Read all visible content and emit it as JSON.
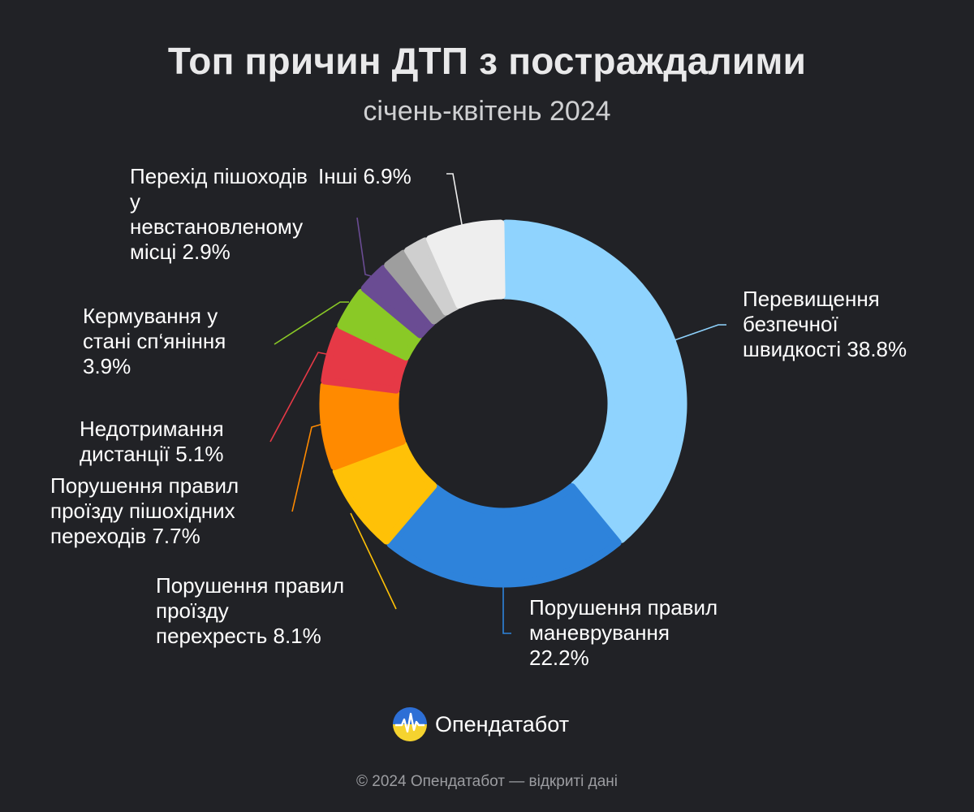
{
  "title": "Топ причин ДТП з постраждалими",
  "subtitle": "січень-квітень 2024",
  "brand": {
    "name": "Опендатабот",
    "logo_icon": "heartbeat-logo-icon"
  },
  "footer": "© 2024 Опендатабот — відкриті дані",
  "chart_data": {
    "type": "donut",
    "title": "Топ причин ДТП з постраждалими",
    "subtitle": "січень-квітень 2024",
    "unit": "%",
    "slices": [
      {
        "label": "Перевищення безпечної швидкості",
        "value": 38.8,
        "color": "#8fd3fe",
        "label_lines": [
          "Перевищення",
          "безпечної",
          "швидкості 38.8%"
        ]
      },
      {
        "label": "Порушення правил маневрування",
        "value": 22.2,
        "color": "#2e83db",
        "label_lines": [
          "Порушення правил",
          "маневрування",
          "22.2%"
        ]
      },
      {
        "label": "Порушення правил проїзду перехресть",
        "value": 8.1,
        "color": "#ffc107",
        "label_lines": [
          "Порушення правил",
          "проїзду",
          "перехресть 8.1%"
        ]
      },
      {
        "label": "Порушення правил проїзду пішохідних переходів",
        "value": 7.7,
        "color": "#ff8a00",
        "label_lines": [
          "Порушення правил",
          "проїзду пішохідних",
          "переходів 7.7%"
        ]
      },
      {
        "label": "Недотримання дистанції",
        "value": 5.1,
        "color": "#e63946",
        "label_lines": [
          "Недотримання",
          "дистанції 5.1%"
        ]
      },
      {
        "label": "Кермування у стані сп‘яніння",
        "value": 3.9,
        "color": "#8ac926",
        "label_lines": [
          "Кермування у",
          "стані сп‘яніння",
          "3.9%"
        ]
      },
      {
        "label": "Перехід пішоходів у невстановленому місці",
        "value": 2.9,
        "color": "#6a4c93",
        "label_lines": [
          "Перехід пішоходів",
          "у",
          "невстановленому",
          "місці 2.9%"
        ]
      },
      {
        "label": "",
        "value": 2.2,
        "color": "#9e9e9e",
        "label_lines": []
      },
      {
        "label": "",
        "value": 2.2,
        "color": "#cfcfcf",
        "label_lines": []
      },
      {
        "label": "Інші",
        "value": 6.9,
        "color": "#eeeeee",
        "label_lines": [
          "Інші 6.9%"
        ]
      }
    ]
  }
}
